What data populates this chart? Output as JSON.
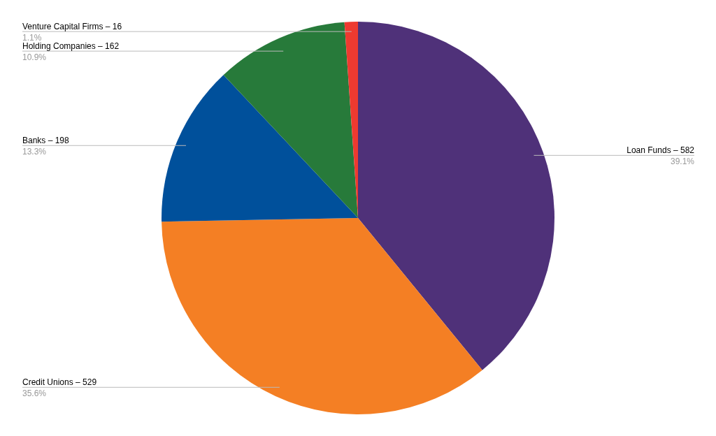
{
  "chart_data": {
    "type": "pie",
    "categories": [
      "Loan Funds – 582",
      "Credit Unions – 529",
      "Banks – 198",
      "Holding Companies – 162",
      "Venture Capital Firms – 16"
    ],
    "values": [
      39.1,
      35.6,
      13.3,
      10.9,
      1.1
    ],
    "colors": [
      "#4f3179",
      "#f47f24",
      "#00509b",
      "#277a3a",
      "#ee3a30"
    ],
    "value_labels": [
      "39.1%",
      "35.6%",
      "13.3%",
      "10.9%",
      "1.1%"
    ]
  }
}
